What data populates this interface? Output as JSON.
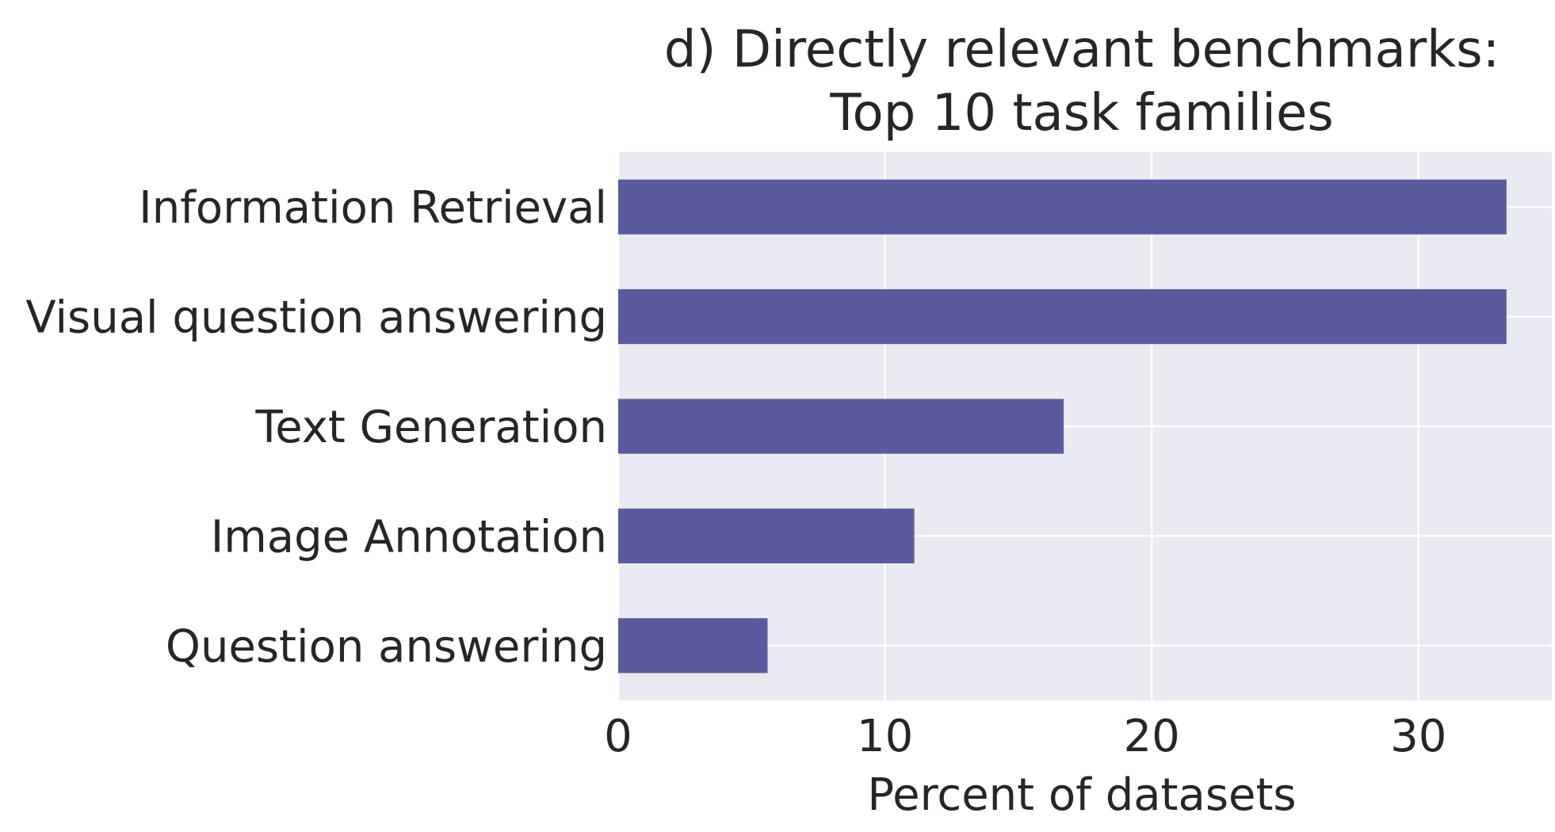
{
  "chart_data": {
    "type": "bar",
    "orientation": "horizontal",
    "title": "d) Directly relevant benchmarks:\nTop 10 task families",
    "xlabel": "Percent of datasets",
    "ylabel": "",
    "categories": [
      "Information Retrieval",
      "Visual question answering",
      "Text Generation",
      "Image Annotation",
      "Question answering"
    ],
    "values": [
      33.3,
      33.3,
      16.7,
      11.1,
      5.6
    ],
    "xlim": [
      0,
      35
    ],
    "xticks": [
      0,
      10,
      20,
      30
    ],
    "grid": true,
    "legend": "none",
    "bar_color": "#5a5b9f",
    "plot_background": "#eaeaf2"
  }
}
